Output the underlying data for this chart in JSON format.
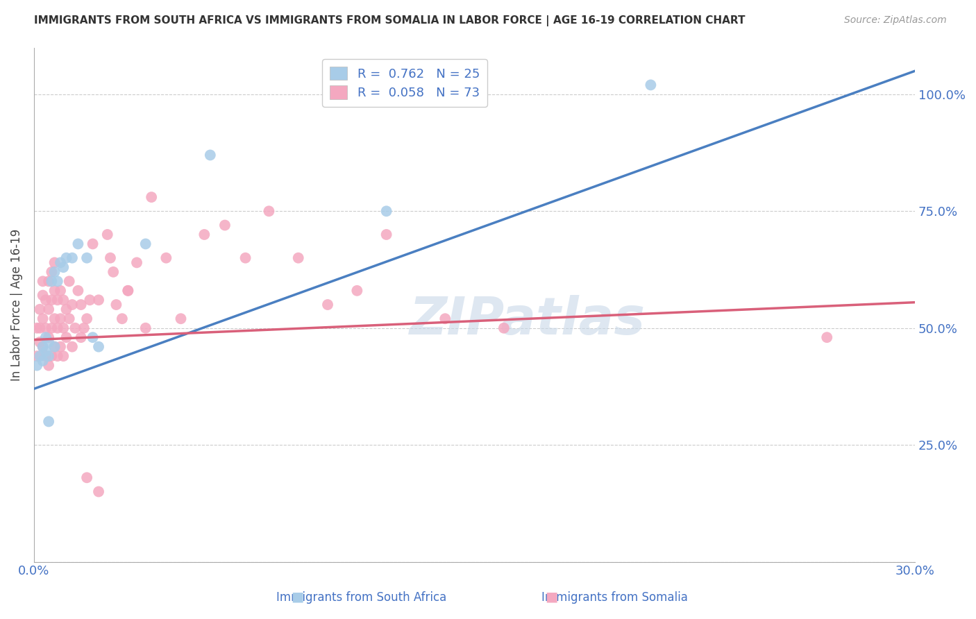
{
  "title": "IMMIGRANTS FROM SOUTH AFRICA VS IMMIGRANTS FROM SOMALIA IN LABOR FORCE | AGE 16-19 CORRELATION CHART",
  "source": "Source: ZipAtlas.com",
  "ylabel": "In Labor Force | Age 16-19",
  "xmin": 0.0,
  "xmax": 0.3,
  "ymin": 0.0,
  "ymax": 1.1,
  "yticks": [
    0.0,
    0.25,
    0.5,
    0.75,
    1.0
  ],
  "ytick_labels": [
    "",
    "25.0%",
    "50.0%",
    "75.0%",
    "100.0%"
  ],
  "xticks": [
    0.0,
    0.05,
    0.1,
    0.15,
    0.2,
    0.25,
    0.3
  ],
  "xtick_labels": [
    "0.0%",
    "",
    "",
    "",
    "",
    "",
    "30.0%"
  ],
  "blue_R": 0.762,
  "blue_N": 25,
  "pink_R": 0.058,
  "pink_N": 73,
  "blue_color": "#a8cce8",
  "pink_color": "#f4a8c0",
  "blue_line_color": "#4a7fc1",
  "pink_line_color": "#d9607a",
  "watermark_color": "#c8d8e8",
  "blue_trend_x0": 0.0,
  "blue_trend_y0": 0.37,
  "blue_trend_x1": 0.3,
  "blue_trend_y1": 1.05,
  "pink_trend_x0": 0.0,
  "pink_trend_y0": 0.475,
  "pink_trend_x1": 0.3,
  "pink_trend_y1": 0.555,
  "blue_points_x": [
    0.001,
    0.002,
    0.003,
    0.003,
    0.004,
    0.004,
    0.005,
    0.005,
    0.006,
    0.007,
    0.007,
    0.008,
    0.009,
    0.01,
    0.011,
    0.013,
    0.015,
    0.018,
    0.02,
    0.022,
    0.038,
    0.06,
    0.12,
    0.21,
    0.005
  ],
  "blue_points_y": [
    0.42,
    0.44,
    0.43,
    0.46,
    0.45,
    0.48,
    0.44,
    0.47,
    0.6,
    0.62,
    0.46,
    0.6,
    0.64,
    0.63,
    0.65,
    0.65,
    0.68,
    0.65,
    0.48,
    0.46,
    0.68,
    0.87,
    0.75,
    1.02,
    0.3
  ],
  "pink_points_x": [
    0.001,
    0.001,
    0.002,
    0.002,
    0.002,
    0.003,
    0.003,
    0.003,
    0.003,
    0.004,
    0.004,
    0.004,
    0.005,
    0.005,
    0.005,
    0.005,
    0.006,
    0.006,
    0.006,
    0.006,
    0.007,
    0.007,
    0.007,
    0.007,
    0.008,
    0.008,
    0.008,
    0.009,
    0.009,
    0.009,
    0.01,
    0.01,
    0.01,
    0.011,
    0.011,
    0.012,
    0.012,
    0.013,
    0.013,
    0.014,
    0.015,
    0.016,
    0.016,
    0.017,
    0.018,
    0.019,
    0.02,
    0.022,
    0.025,
    0.026,
    0.028,
    0.03,
    0.032,
    0.035,
    0.04,
    0.045,
    0.05,
    0.058,
    0.065,
    0.072,
    0.08,
    0.09,
    0.1,
    0.11,
    0.12,
    0.14,
    0.16,
    0.018,
    0.022,
    0.027,
    0.032,
    0.038,
    0.27
  ],
  "pink_points_y": [
    0.44,
    0.5,
    0.5,
    0.54,
    0.47,
    0.46,
    0.52,
    0.57,
    0.6,
    0.44,
    0.5,
    0.56,
    0.42,
    0.48,
    0.54,
    0.6,
    0.44,
    0.5,
    0.56,
    0.62,
    0.46,
    0.52,
    0.58,
    0.64,
    0.44,
    0.5,
    0.56,
    0.46,
    0.52,
    0.58,
    0.44,
    0.5,
    0.56,
    0.48,
    0.54,
    0.52,
    0.6,
    0.46,
    0.55,
    0.5,
    0.58,
    0.48,
    0.55,
    0.5,
    0.52,
    0.56,
    0.68,
    0.56,
    0.7,
    0.65,
    0.55,
    0.52,
    0.58,
    0.64,
    0.78,
    0.65,
    0.52,
    0.7,
    0.72,
    0.65,
    0.75,
    0.65,
    0.55,
    0.58,
    0.7,
    0.52,
    0.5,
    0.18,
    0.15,
    0.62,
    0.58,
    0.5,
    0.48
  ]
}
